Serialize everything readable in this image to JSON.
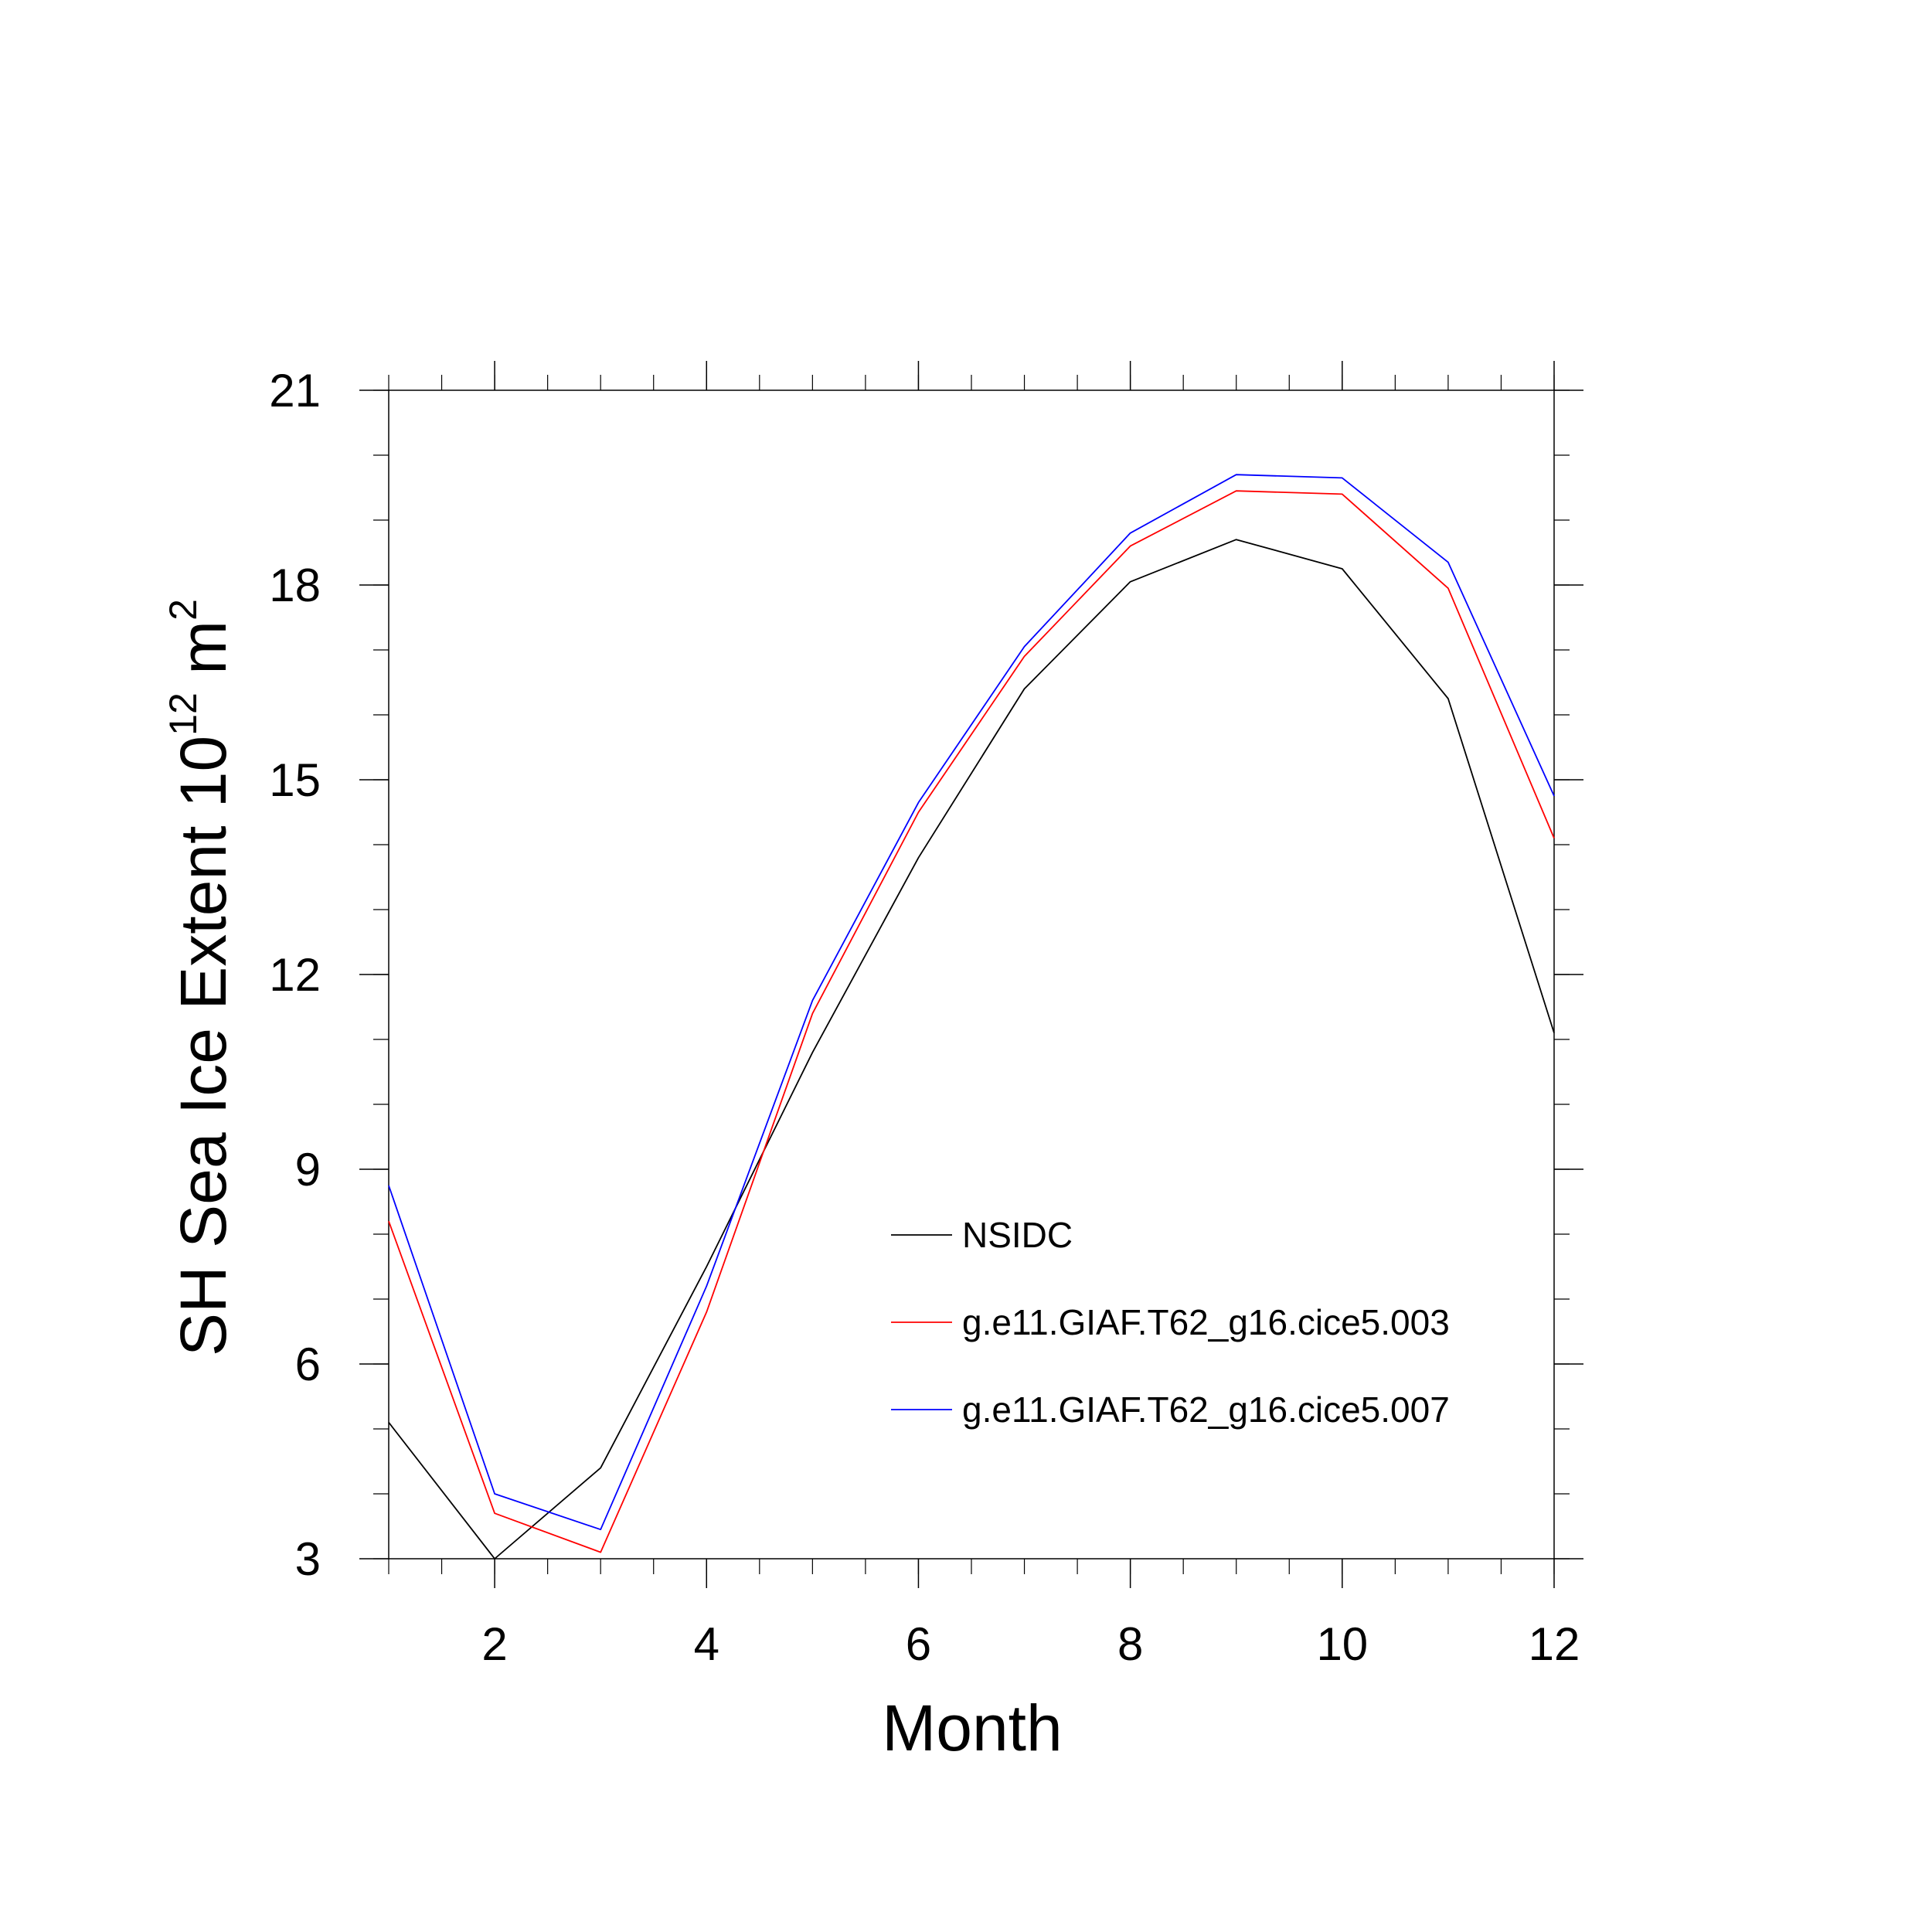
{
  "chart_data": {
    "type": "line",
    "xlabel": "Month",
    "ylabel": {
      "prefix": "SH Sea Ice Extent 10",
      "exponent": "12",
      "unit": " m",
      "unit_exponent": "2"
    },
    "xlim": [
      1,
      12
    ],
    "ylim": [
      3,
      21
    ],
    "x_major_ticks": [
      2,
      4,
      6,
      8,
      10,
      12
    ],
    "y_major_ticks": [
      3,
      6,
      9,
      12,
      15,
      18,
      21
    ],
    "x_minor_step": 0.5,
    "y_minor_step": 1,
    "grid": false,
    "legend_position": "lower-right inside",
    "x": [
      1,
      2,
      3,
      4,
      5,
      6,
      7,
      8,
      9,
      10,
      11,
      12
    ],
    "series": [
      {
        "name": "NSIDC",
        "color": "#000000",
        "values": [
          5.1,
          3.0,
          4.4,
          7.5,
          10.8,
          13.8,
          16.4,
          18.05,
          18.7,
          18.25,
          16.25,
          11.1
        ]
      },
      {
        "name": "g.e11.GIAF.T62_g16.cice5.003",
        "color": "#ff0000",
        "values": [
          8.2,
          3.7,
          3.1,
          6.8,
          11.4,
          14.5,
          16.9,
          18.6,
          19.45,
          19.4,
          17.95,
          14.1
        ]
      },
      {
        "name": "g.e11.GIAF.T62_g16.cice5.007",
        "color": "#0000ff",
        "values": [
          8.75,
          4.0,
          3.45,
          7.2,
          11.6,
          14.65,
          17.05,
          18.8,
          19.7,
          19.65,
          18.35,
          14.75
        ]
      }
    ]
  }
}
